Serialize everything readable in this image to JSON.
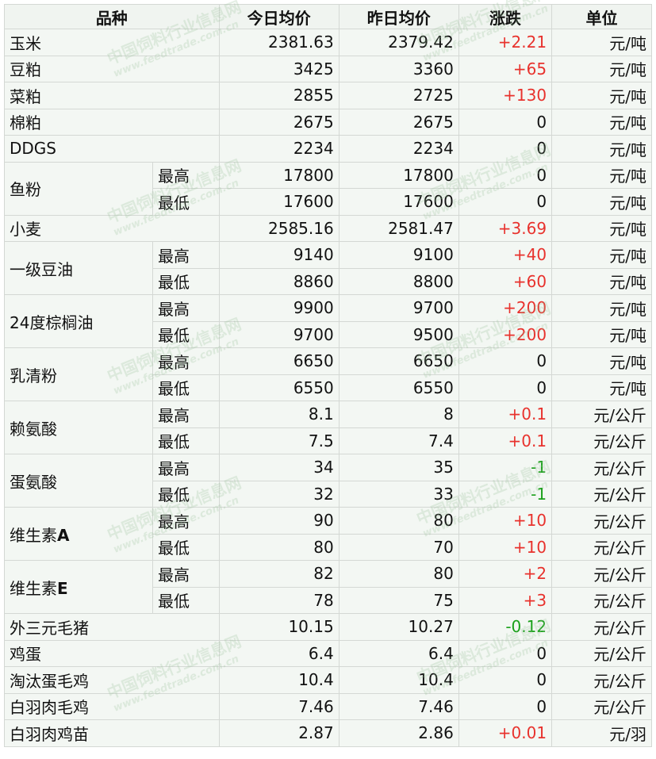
{
  "table": {
    "header": [
      "品种",
      "今日均价",
      "昨日均价",
      "涨跌",
      "单位"
    ],
    "rows": [
      {
        "name": "玉米",
        "entries": [
          {
            "today": "2381.63",
            "yesterday": "2379.42",
            "change": "+2.21",
            "unit": "元/吨"
          }
        ]
      },
      {
        "name": "豆粕",
        "entries": [
          {
            "today": "3425",
            "yesterday": "3360",
            "change": "+65",
            "unit": "元/吨"
          }
        ]
      },
      {
        "name": "菜粕",
        "entries": [
          {
            "today": "2855",
            "yesterday": "2725",
            "change": "+130",
            "unit": "元/吨"
          }
        ]
      },
      {
        "name": "棉粕",
        "entries": [
          {
            "today": "2675",
            "yesterday": "2675",
            "change": "0",
            "unit": "元/吨"
          }
        ]
      },
      {
        "name": "DDGS",
        "entries": [
          {
            "today": "2234",
            "yesterday": "2234",
            "change": "0",
            "unit": "元/吨"
          }
        ]
      },
      {
        "name": "鱼粉",
        "entries": [
          {
            "level": "最高",
            "today": "17800",
            "yesterday": "17800",
            "change": "0",
            "unit": "元/吨"
          },
          {
            "level": "最低",
            "today": "17600",
            "yesterday": "17600",
            "change": "0",
            "unit": "元/吨"
          }
        ]
      },
      {
        "name": "小麦",
        "entries": [
          {
            "today": "2585.16",
            "yesterday": "2581.47",
            "change": "+3.69",
            "unit": "元/吨"
          }
        ]
      },
      {
        "name": "一级豆油",
        "entries": [
          {
            "level": "最高",
            "today": "9140",
            "yesterday": "9100",
            "change": "+40",
            "unit": "元/吨"
          },
          {
            "level": "最低",
            "today": "8860",
            "yesterday": "8800",
            "change": "+60",
            "unit": "元/吨"
          }
        ]
      },
      {
        "name": "24度棕榈油",
        "entries": [
          {
            "level": "最高",
            "today": "9900",
            "yesterday": "9700",
            "change": "+200",
            "unit": "元/吨"
          },
          {
            "level": "最低",
            "today": "9700",
            "yesterday": "9500",
            "change": "+200",
            "unit": "元/吨"
          }
        ]
      },
      {
        "name": "乳清粉",
        "entries": [
          {
            "level": "最高",
            "today": "6650",
            "yesterday": "6650",
            "change": "0",
            "unit": "元/吨"
          },
          {
            "level": "最低",
            "today": "6550",
            "yesterday": "6550",
            "change": "0",
            "unit": "元/吨"
          }
        ]
      },
      {
        "name": "赖氨酸",
        "entries": [
          {
            "level": "最高",
            "today": "8.1",
            "yesterday": "8",
            "change": "+0.1",
            "unit": "元/公斤"
          },
          {
            "level": "最低",
            "today": "7.5",
            "yesterday": "7.4",
            "change": "+0.1",
            "unit": "元/公斤"
          }
        ]
      },
      {
        "name": "蛋氨酸",
        "entries": [
          {
            "level": "最高",
            "today": "34",
            "yesterday": "35",
            "change": "-1",
            "unit": "元/公斤"
          },
          {
            "level": "最低",
            "today": "32",
            "yesterday": "33",
            "change": "-1",
            "unit": "元/公斤"
          }
        ]
      },
      {
        "name": "维生素",
        "name_suffix": "A",
        "entries": [
          {
            "level": "最高",
            "today": "90",
            "yesterday": "80",
            "change": "+10",
            "unit": "元/公斤"
          },
          {
            "level": "最低",
            "today": "80",
            "yesterday": "70",
            "change": "+10",
            "unit": "元/公斤"
          }
        ]
      },
      {
        "name": "维生素",
        "name_suffix": "E",
        "entries": [
          {
            "level": "最高",
            "today": "82",
            "yesterday": "80",
            "change": "+2",
            "unit": "元/公斤"
          },
          {
            "level": "最低",
            "today": "78",
            "yesterday": "75",
            "change": "+3",
            "unit": "元/公斤"
          }
        ]
      },
      {
        "name": "外三元毛猪",
        "entries": [
          {
            "today": "10.15",
            "yesterday": "10.27",
            "change": "-0.12",
            "unit": "元/公斤"
          }
        ]
      },
      {
        "name": "鸡蛋",
        "entries": [
          {
            "today": "6.4",
            "yesterday": "6.4",
            "change": "0",
            "unit": "元/公斤"
          }
        ]
      },
      {
        "name": "淘汰蛋毛鸡",
        "entries": [
          {
            "today": "10.4",
            "yesterday": "10.4",
            "change": "0",
            "unit": "元/公斤"
          }
        ]
      },
      {
        "name": "白羽肉毛鸡",
        "entries": [
          {
            "today": "7.46",
            "yesterday": "7.46",
            "change": "0",
            "unit": "元/公斤"
          }
        ]
      },
      {
        "name": "白羽肉鸡苗",
        "entries": [
          {
            "today": "2.87",
            "yesterday": "2.86",
            "change": "+0.01",
            "unit": "元/羽"
          }
        ]
      }
    ]
  },
  "watermark": {
    "title": "中国饲料行业信息网",
    "url": "www.feedtrade.com.cn"
  }
}
